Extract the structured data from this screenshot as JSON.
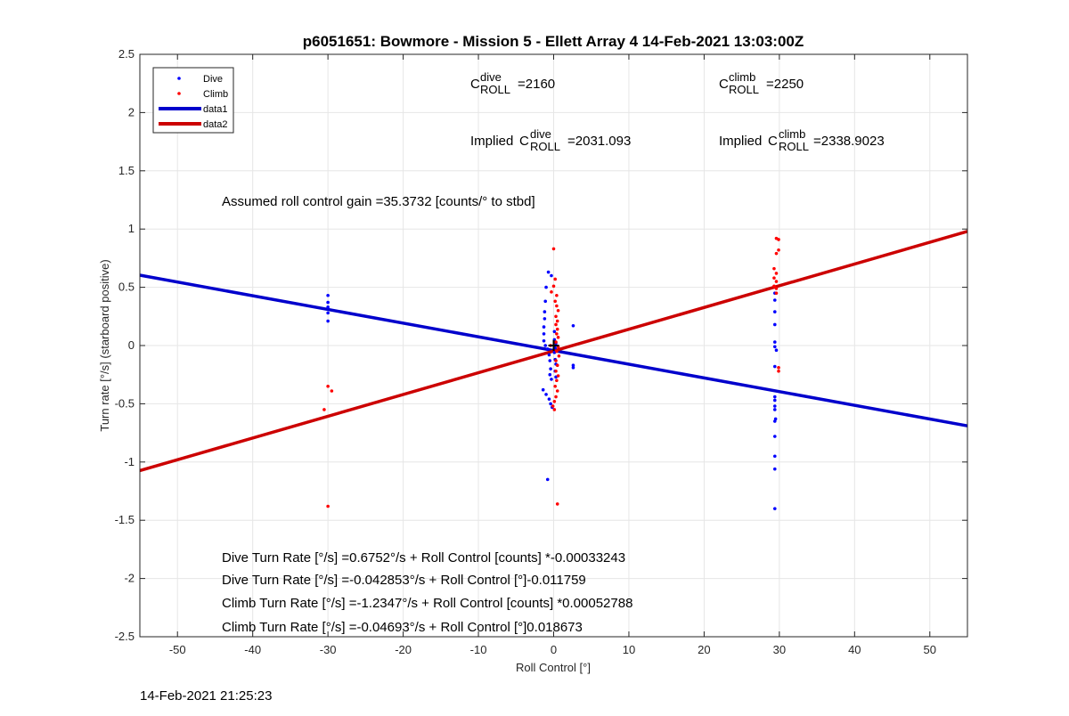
{
  "chart_data": {
    "type": "scatter",
    "title": "p6051651: Bowmore - Mission 5 - Ellett Array 4 14-Feb-2021 13:03:00Z",
    "xlabel": "Roll Control [°]",
    "ylabel": "Turn rate [°/s] (starboard positive)",
    "xlim": [
      -55,
      55
    ],
    "ylim": [
      -2.5,
      2.5
    ],
    "xticks": [
      -50,
      -40,
      -30,
      -20,
      -10,
      0,
      10,
      20,
      30,
      40,
      50
    ],
    "yticks": [
      -2.5,
      -2,
      -1.5,
      -1,
      -0.5,
      0,
      0.5,
      1,
      1.5,
      2,
      2.5
    ],
    "ytick_labels": [
      "-2.5",
      "-2",
      "-1.5",
      "-1",
      "-0.5",
      "0",
      "0.5",
      "1",
      "1.5",
      "2",
      "2.5"
    ],
    "grid": true,
    "legend_position": "top-left",
    "series": [
      {
        "name": "Dive",
        "kind": "points",
        "color": "#0000ff",
        "points": [
          [
            -30,
            0.43
          ],
          [
            -30,
            0.37
          ],
          [
            -30,
            0.33
          ],
          [
            -30,
            0.28
          ],
          [
            -30,
            0.21
          ],
          [
            -0.7,
            0.63
          ],
          [
            -0.3,
            0.6
          ],
          [
            -1.0,
            0.5
          ],
          [
            -1.1,
            0.38
          ],
          [
            -1.2,
            0.29
          ],
          [
            -1.2,
            0.23
          ],
          [
            -1.3,
            0.16
          ],
          [
            -1.3,
            0.1
          ],
          [
            -1.3,
            0.04
          ],
          [
            -1.1,
            0.0
          ],
          [
            -0.8,
            -0.03
          ],
          [
            -0.6,
            -0.08
          ],
          [
            -0.5,
            -0.13
          ],
          [
            -0.4,
            -0.2
          ],
          [
            -0.5,
            -0.25
          ],
          [
            -0.3,
            -0.29
          ],
          [
            -1.4,
            -0.38
          ],
          [
            -1.0,
            -0.42
          ],
          [
            -0.6,
            -0.46
          ],
          [
            -0.4,
            -0.5
          ],
          [
            -0.2,
            -0.53
          ],
          [
            -0.8,
            -1.15
          ],
          [
            0.1,
            0.05
          ],
          [
            0.2,
            -0.02
          ],
          [
            0.3,
            0.02
          ],
          [
            0.1,
            -0.06
          ],
          [
            0.2,
            -0.12
          ],
          [
            0.3,
            -0.16
          ],
          [
            0.2,
            -0.22
          ],
          [
            0.3,
            -0.27
          ],
          [
            0.1,
            0.12
          ],
          [
            2.6,
            0.17
          ],
          [
            2.6,
            -0.17
          ],
          [
            2.6,
            -0.19
          ],
          [
            29.4,
            0.45
          ],
          [
            29.4,
            0.39
          ],
          [
            29.4,
            0.29
          ],
          [
            29.4,
            0.18
          ],
          [
            29.4,
            0.03
          ],
          [
            29.4,
            -0.01
          ],
          [
            29.6,
            -0.04
          ],
          [
            29.4,
            -0.18
          ],
          [
            29.4,
            -0.44
          ],
          [
            29.4,
            -0.47
          ],
          [
            29.4,
            -0.52
          ],
          [
            29.4,
            -0.55
          ],
          [
            29.5,
            -0.63
          ],
          [
            29.4,
            -0.65
          ],
          [
            29.4,
            -0.78
          ],
          [
            29.4,
            -0.95
          ],
          [
            29.4,
            -1.06
          ],
          [
            29.4,
            -1.4
          ]
        ]
      },
      {
        "name": "Climb",
        "kind": "points",
        "color": "#ff0000",
        "points": [
          [
            -30,
            -0.35
          ],
          [
            -29.5,
            -0.39
          ],
          [
            -30.5,
            -0.55
          ],
          [
            -30,
            -1.38
          ],
          [
            0,
            0.83
          ],
          [
            0.2,
            0.57
          ],
          [
            0.0,
            0.51
          ],
          [
            -0.3,
            0.46
          ],
          [
            0.4,
            0.43
          ],
          [
            0.2,
            0.38
          ],
          [
            0.4,
            0.34
          ],
          [
            0.6,
            0.3
          ],
          [
            0.3,
            0.25
          ],
          [
            0.5,
            0.21
          ],
          [
            0.3,
            0.18
          ],
          [
            0.5,
            0.14
          ],
          [
            0.4,
            0.1
          ],
          [
            0.6,
            0.07
          ],
          [
            0.3,
            0.03
          ],
          [
            0.6,
            -0.01
          ],
          [
            0.4,
            -0.05
          ],
          [
            0.7,
            -0.09
          ],
          [
            0.3,
            -0.13
          ],
          [
            0.5,
            -0.17
          ],
          [
            0.3,
            -0.22
          ],
          [
            0.6,
            -0.26
          ],
          [
            0.4,
            -0.3
          ],
          [
            0.2,
            -0.35
          ],
          [
            0.5,
            -0.39
          ],
          [
            0.3,
            -0.44
          ],
          [
            0.1,
            -0.48
          ],
          [
            -0.1,
            -0.52
          ],
          [
            0.1,
            -0.55
          ],
          [
            -0.4,
            0.0
          ],
          [
            0.5,
            -1.36
          ],
          [
            29.9,
            0.91
          ],
          [
            29.6,
            0.92
          ],
          [
            29.9,
            0.82
          ],
          [
            29.6,
            0.79
          ],
          [
            29.3,
            0.66
          ],
          [
            29.6,
            0.62
          ],
          [
            29.3,
            0.58
          ],
          [
            29.6,
            0.55
          ],
          [
            29.3,
            0.51
          ],
          [
            29.6,
            0.49
          ],
          [
            29.6,
            0.45
          ],
          [
            29.9,
            -0.19
          ],
          [
            29.9,
            -0.22
          ]
        ]
      },
      {
        "name": "data1",
        "kind": "line",
        "color": "#0000cc",
        "intercept": -0.042853,
        "slope": -0.011759
      },
      {
        "name": "data2",
        "kind": "line",
        "color": "#cc0000",
        "intercept": -0.04693,
        "slope": 0.018673
      }
    ],
    "annotations": {
      "c_dive": "=2160",
      "c_climb": "=2250",
      "c_base": "C",
      "sub_roll": "ROLL",
      "sup_dive": "dive",
      "sup_climb": "climb",
      "implied_prefix": "Implied ",
      "implied_dive": "=2031.093",
      "implied_climb": "=2338.9023",
      "gain": "Assumed roll control gain =35.3732 [counts/° to stbd]",
      "eq1": "Dive Turn Rate [°/s] =0.6752°/s + Roll Control [counts] *-0.00033243",
      "eq2": "Dive Turn Rate [°/s] =-0.042853°/s + Roll Control [°]-0.011759",
      "eq3": "Climb Turn Rate [°/s] =-1.2347°/s + Roll Control [counts] *0.00052788",
      "eq4": "Climb Turn Rate [°/s] =-0.04693°/s + Roll Control [°]0.018673"
    },
    "timestamp": "14-Feb-2021 21:25:23"
  }
}
